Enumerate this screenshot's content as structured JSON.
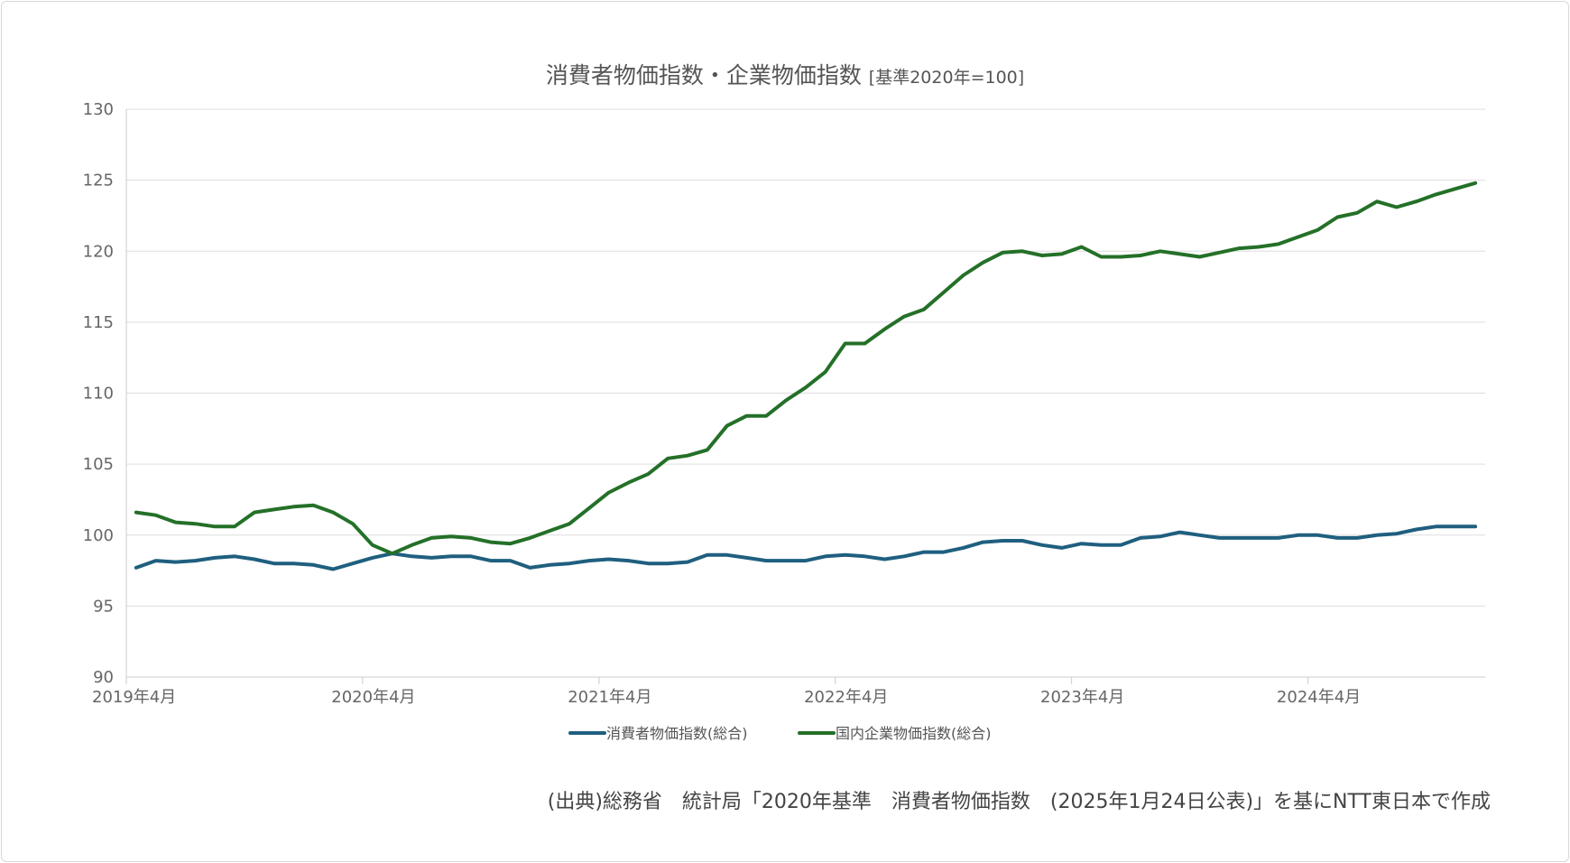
{
  "chart_data": {
    "type": "line",
    "title": "消費者物価指数・企業物価指数",
    "subtitle": "[基準2020年=100]",
    "xlabel": "",
    "ylabel": "",
    "ylim": [
      90,
      130
    ],
    "yticks": [
      "90",
      "95",
      "100",
      "105",
      "110",
      "115",
      "120",
      "125",
      "130"
    ],
    "xtick_labels": [
      "2019年4月",
      "2020年4月",
      "2021年4月",
      "2022年4月",
      "2023年4月",
      "2024年4月"
    ],
    "grid": true,
    "legend": "bottom",
    "x": [
      "2019-04",
      "2019-05",
      "2019-06",
      "2019-07",
      "2019-08",
      "2019-09",
      "2019-10",
      "2019-11",
      "2019-12",
      "2020-01",
      "2020-02",
      "2020-03",
      "2020-04",
      "2020-05",
      "2020-06",
      "2020-07",
      "2020-08",
      "2020-09",
      "2020-10",
      "2020-11",
      "2020-12",
      "2021-01",
      "2021-02",
      "2021-03",
      "2021-04",
      "2021-05",
      "2021-06",
      "2021-07",
      "2021-08",
      "2021-09",
      "2021-10",
      "2021-11",
      "2021-12",
      "2022-01",
      "2022-02",
      "2022-03",
      "2022-04",
      "2022-05",
      "2022-06",
      "2022-07",
      "2022-08",
      "2022-09",
      "2022-10",
      "2022-11",
      "2022-12",
      "2023-01",
      "2023-02",
      "2023-03",
      "2023-04",
      "2023-05",
      "2023-06",
      "2023-07",
      "2023-08",
      "2023-09",
      "2023-10",
      "2023-11",
      "2023-12",
      "2024-01",
      "2024-02",
      "2024-03",
      "2024-04",
      "2024-05",
      "2024-06",
      "2024-07",
      "2024-08",
      "2024-09",
      "2024-10",
      "2024-11",
      "2024-12"
    ],
    "series": [
      {
        "name": "消費者物価指数(総合)",
        "color": "#1f5f7f",
        "values": [
          97.7,
          98.2,
          98.1,
          98.2,
          98.4,
          98.5,
          98.3,
          98.0,
          98.0,
          97.9,
          97.6,
          98.0,
          98.4,
          98.7,
          98.5,
          98.4,
          98.5,
          98.5,
          98.2,
          98.2,
          97.7,
          97.9,
          98.0,
          98.2,
          98.3,
          98.2,
          98.0,
          98.0,
          98.1,
          98.6,
          98.6,
          98.4,
          98.2,
          98.2,
          98.2,
          98.5,
          98.6,
          98.5,
          98.3,
          98.5,
          98.8,
          98.8,
          99.1,
          99.5,
          99.6,
          99.6,
          99.3,
          99.1,
          99.4,
          99.3,
          99.3,
          99.8,
          99.9,
          100.2,
          100.0,
          99.8,
          99.8,
          99.8,
          99.8,
          100.0,
          100.0,
          99.8,
          99.8,
          100.0,
          100.1,
          100.4,
          100.6,
          100.6,
          100.6
        ]
      },
      {
        "name": "国内企業物価指数(総合)",
        "color": "#247028",
        "values": [
          101.6,
          101.4,
          100.9,
          100.8,
          100.6,
          100.6,
          101.6,
          101.8,
          102.0,
          102.1,
          101.6,
          100.8,
          99.3,
          98.7,
          99.3,
          99.8,
          99.9,
          99.8,
          99.5,
          99.4,
          99.8,
          100.3,
          100.8,
          101.9,
          103.0,
          103.7,
          104.3,
          105.4,
          105.6,
          106.0,
          107.7,
          108.4,
          108.4,
          109.5,
          110.4,
          111.5,
          113.5,
          113.5,
          114.5,
          115.4,
          115.9,
          117.1,
          118.3,
          119.2,
          119.9,
          120.0,
          119.7,
          119.8,
          120.3,
          119.6,
          119.6,
          119.7,
          120.0,
          119.8,
          119.6,
          119.9,
          120.2,
          120.3,
          120.5,
          121.0,
          121.5,
          122.4,
          122.7,
          123.5,
          123.1,
          123.5,
          124.0,
          124.4,
          124.8
        ]
      }
    ]
  },
  "source": "(出典)総務省　統計局「2020年基準　消費者物価指数　(2025年1月24日公表)」を基にNTT東日本で作成"
}
